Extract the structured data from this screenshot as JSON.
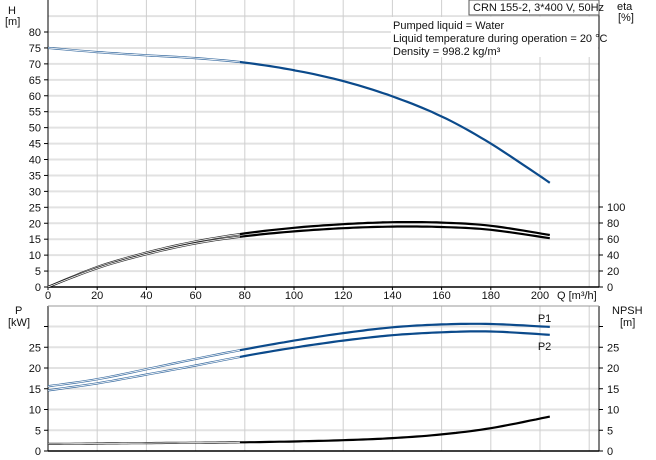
{
  "chart_data": [
    {
      "type": "line",
      "title": "CRN 155-2, 3*400 V, 50Hz",
      "annotations": [
        "Pumped liquid = Water",
        "Liquid temperature during operation = 20 °C",
        "Density = 998.2 kg/m³"
      ],
      "xlabel": "Q [m³/h]",
      "xlim": [
        0,
        224
      ],
      "xticks": [
        0,
        20,
        40,
        60,
        80,
        100,
        120,
        140,
        160,
        180,
        200
      ],
      "ylabel_left": {
        "name": "H",
        "unit": "[m]"
      },
      "ylim_left": [
        0,
        90
      ],
      "yticks_left": [
        0,
        5,
        10,
        15,
        20,
        25,
        30,
        35,
        40,
        45,
        50,
        55,
        60,
        65,
        70,
        75,
        80
      ],
      "ylabel_right": {
        "name": "eta",
        "unit": "[%]"
      },
      "ylim_right": [
        0,
        100
      ],
      "yticks_right": [
        0,
        20,
        40,
        60,
        80,
        100
      ],
      "grid": true,
      "series": [
        {
          "axis": "left",
          "color": "#0b4a8b",
          "x": [
            0,
            20,
            40,
            60,
            80,
            100,
            120,
            140,
            160,
            180,
            204
          ],
          "y": [
            75,
            73.7,
            72.7,
            71.8,
            70.4,
            68,
            64.6,
            59.8,
            53.5,
            45,
            32.7
          ]
        },
        {
          "axis": "right",
          "color": "#000000",
          "x": [
            0,
            20,
            40,
            60,
            80,
            100,
            120,
            140,
            160,
            180,
            204
          ],
          "y": [
            0,
            25,
            43,
            57,
            67,
            74,
            78.5,
            81,
            80.5,
            76.5,
            65
          ]
        },
        {
          "axis": "right",
          "color": "#000000",
          "x": [
            0,
            20,
            40,
            60,
            80,
            100,
            120,
            140,
            160,
            180,
            204
          ],
          "y": [
            0,
            23.5,
            41,
            54.5,
            63.5,
            69.5,
            73.5,
            75.5,
            75,
            71.5,
            61
          ]
        }
      ]
    },
    {
      "type": "line",
      "xlabel": "Q [m³/h]",
      "xlim": [
        0,
        224
      ],
      "xticks": [
        0,
        20,
        40,
        60,
        80,
        100,
        120,
        140,
        160,
        180,
        200
      ],
      "ylabel_left": {
        "name": "P",
        "unit": "[kW]"
      },
      "ylim_left": [
        0,
        35
      ],
      "yticks_left": [
        0,
        5,
        10,
        15,
        20,
        25
      ],
      "ylabel_right": {
        "name": "NPSH",
        "unit": "[m]"
      },
      "ylim_right": [
        0,
        35
      ],
      "yticks_right": [
        0,
        5,
        10,
        15,
        20,
        25
      ],
      "grid": true,
      "series": [
        {
          "name": "P1",
          "axis": "left",
          "color": "#0b4a8b",
          "x": [
            0,
            20,
            40,
            60,
            80,
            100,
            120,
            140,
            160,
            180,
            204
          ],
          "y": [
            15.6,
            17.3,
            19.7,
            22.2,
            24.5,
            26.6,
            28.4,
            29.8,
            30.5,
            30.6,
            29.9
          ]
        },
        {
          "name": "P2",
          "axis": "left",
          "color": "#0b4a8b",
          "x": [
            0,
            20,
            40,
            60,
            80,
            100,
            120,
            140,
            160,
            180,
            204
          ],
          "y": [
            14.6,
            16.3,
            18.4,
            20.6,
            22.9,
            24.9,
            26.6,
            27.9,
            28.6,
            28.8,
            28
          ]
        },
        {
          "axis": "right",
          "color": "#000000",
          "x": [
            0,
            20,
            40,
            60,
            80,
            100,
            120,
            140,
            160,
            180,
            204
          ],
          "y": [
            1.7,
            1.8,
            1.9,
            2.0,
            2.1,
            2.3,
            2.6,
            3.1,
            4.0,
            5.5,
            8.3
          ]
        }
      ]
    }
  ]
}
